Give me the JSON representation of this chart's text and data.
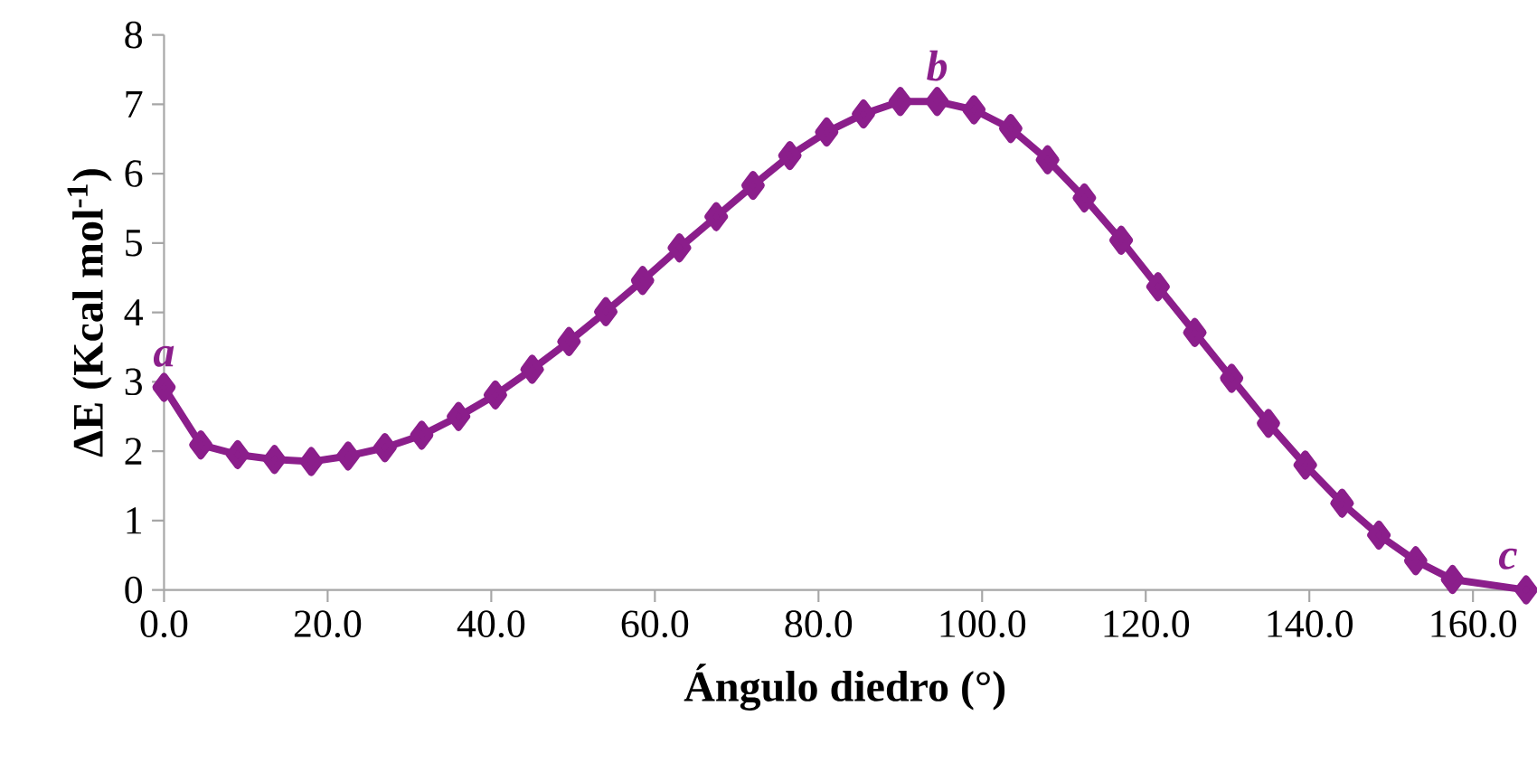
{
  "chart_data": {
    "type": "line",
    "xlabel": "Ángulo diedro (°)",
    "ylabel": "ΔE (Kcal mol$^{-1}$)",
    "xlim": [
      0,
      166.5
    ],
    "ylim": [
      0,
      8
    ],
    "xticks": [
      {
        "value": 0,
        "label": "0.0"
      },
      {
        "value": 20,
        "label": "20.0"
      },
      {
        "value": 40,
        "label": "40.0"
      },
      {
        "value": 60,
        "label": "60.0"
      },
      {
        "value": 80,
        "label": "80.0"
      },
      {
        "value": 100,
        "label": "100.0"
      },
      {
        "value": 120,
        "label": "120.0"
      },
      {
        "value": 140,
        "label": "140.0"
      },
      {
        "value": 160,
        "label": "160.0"
      }
    ],
    "yticks": [
      0,
      1,
      2,
      3,
      4,
      5,
      6,
      7,
      8
    ],
    "marker": "diamond",
    "line_style": "solid",
    "annotations": [
      {
        "text": "a",
        "x": 0,
        "y": 2.92
      },
      {
        "text": "b",
        "x": 94.5,
        "y": 7.04
      },
      {
        "text": "c",
        "x": 166.5,
        "y": 0
      }
    ],
    "series": [
      {
        "color": "#8b1e8b",
        "x": [
          0,
          4.5,
          9,
          13.5,
          18,
          22.5,
          27,
          31.5,
          36,
          40.5,
          45,
          49.5,
          54,
          58.5,
          63,
          67.5,
          72,
          76.5,
          81,
          85.5,
          90,
          94.5,
          99,
          103.5,
          108,
          112.5,
          117,
          121.5,
          126,
          130.5,
          135,
          139.5,
          144,
          148.5,
          153,
          157.5,
          166.5
        ],
        "values": [
          2.92,
          2.09,
          1.95,
          1.88,
          1.85,
          1.93,
          2.05,
          2.23,
          2.5,
          2.81,
          3.18,
          3.58,
          4.01,
          4.46,
          4.93,
          5.38,
          5.83,
          6.26,
          6.6,
          6.86,
          7.04,
          7.04,
          6.92,
          6.65,
          6.2,
          5.65,
          5.04,
          4.37,
          3.71,
          3.05,
          2.4,
          1.8,
          1.25,
          0.79,
          0.42,
          0.15,
          0
        ]
      }
    ]
  }
}
